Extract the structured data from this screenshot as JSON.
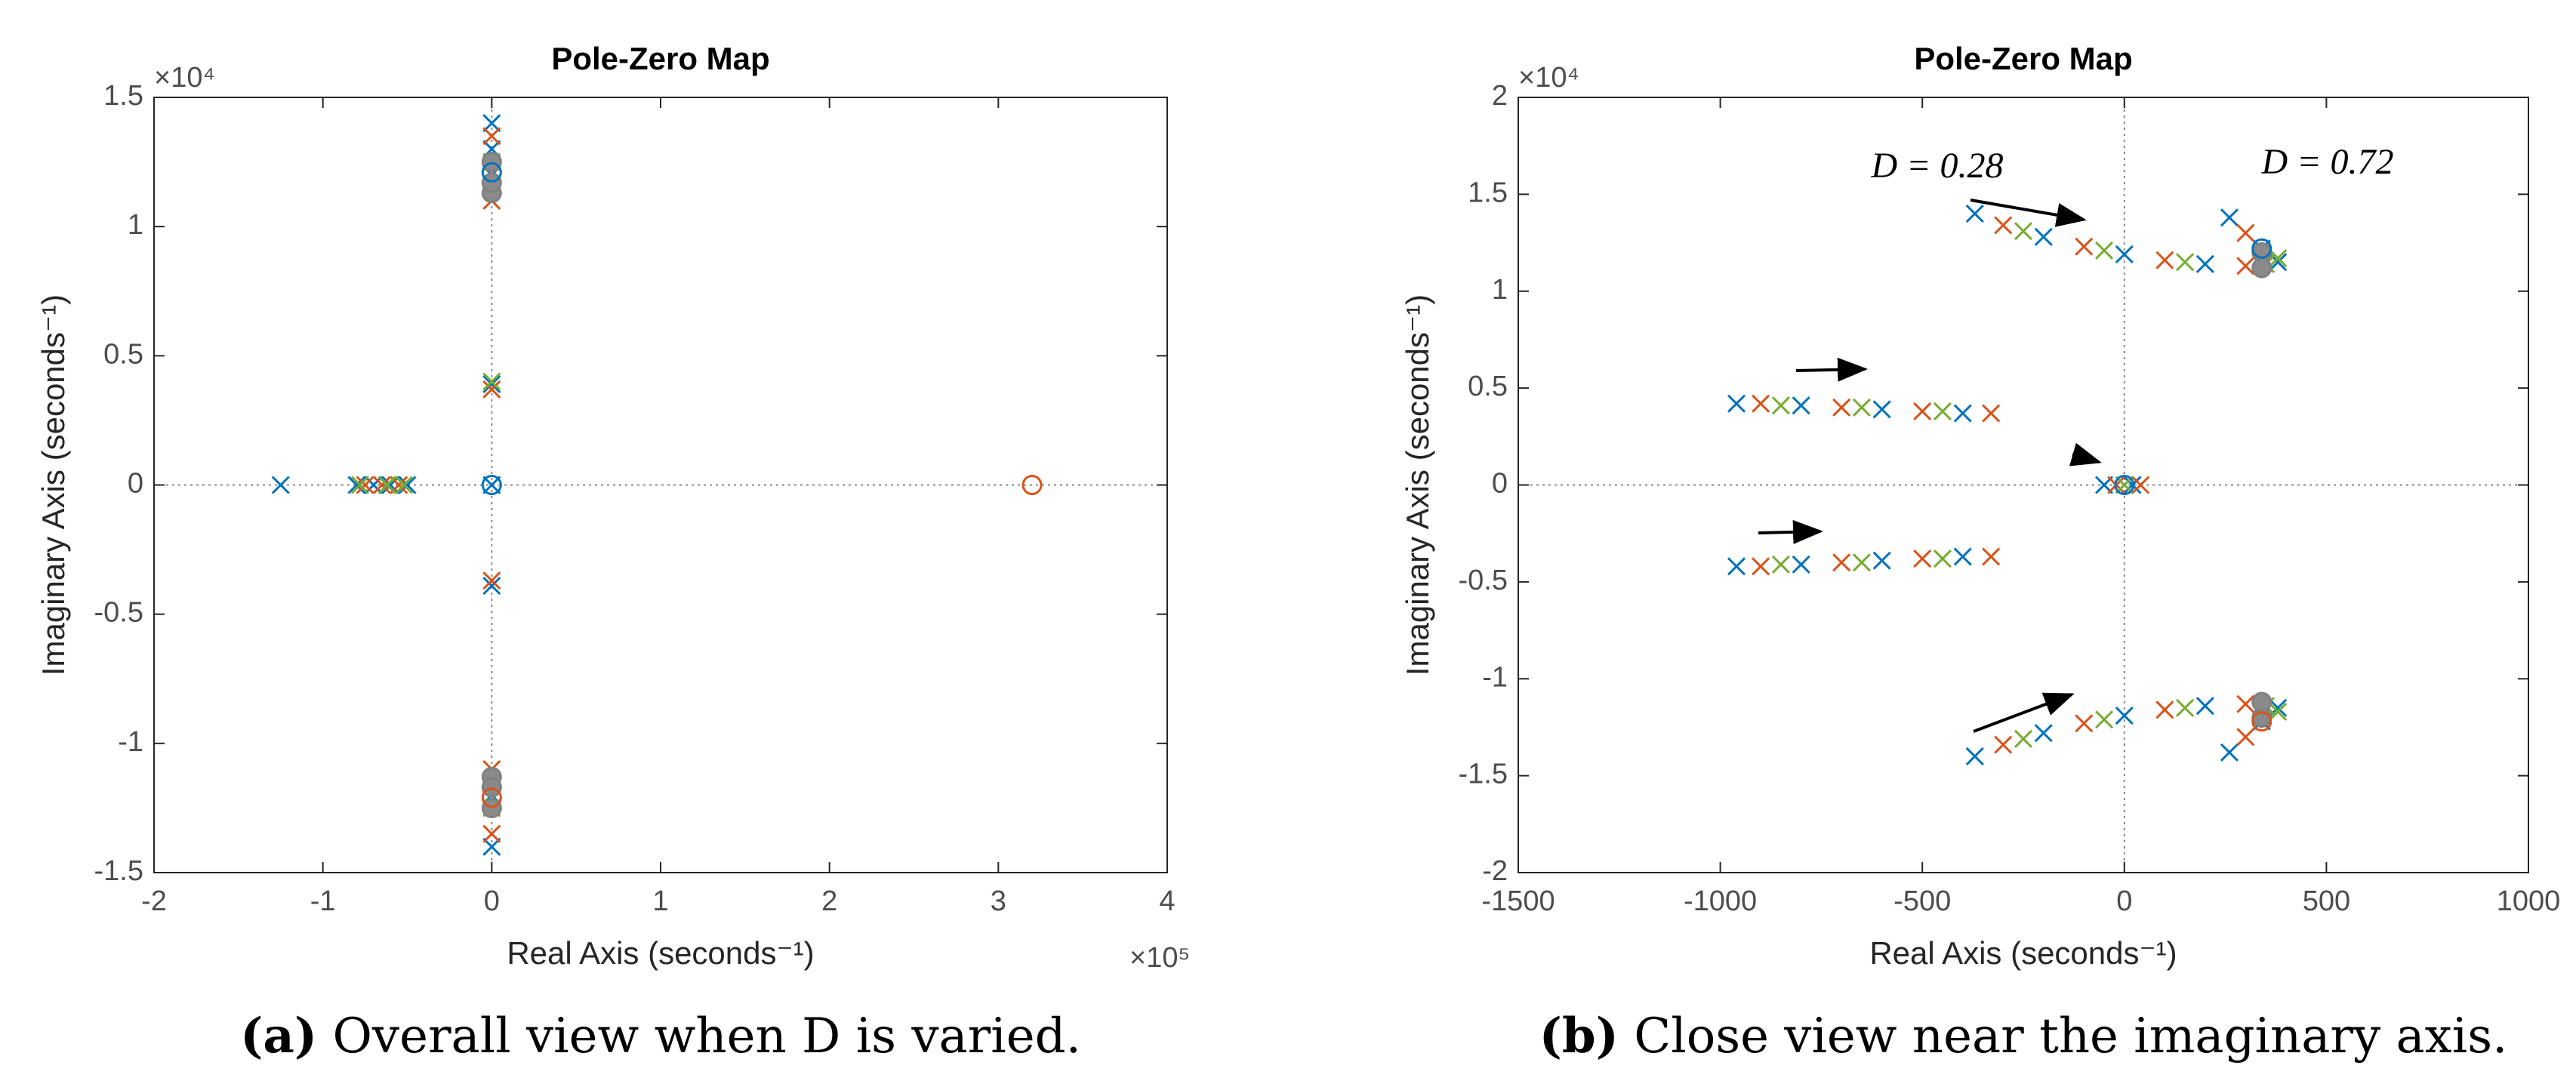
{
  "chart_data": [
    {
      "type": "scatter",
      "title": "Pole-Zero Map",
      "xlabel": "Real Axis (seconds⁻¹)",
      "ylabel": "Imaginary Axis (seconds⁻¹)",
      "x_exponent": "×10⁵",
      "y_exponent": "×10⁴",
      "xlim": [
        -2,
        4
      ],
      "xticks": [
        -2,
        -1,
        0,
        1,
        2,
        3,
        4
      ],
      "ylim": [
        -1.5,
        1.5
      ],
      "yticks": [
        -1.5,
        -1,
        -0.5,
        0,
        0.5,
        1,
        1.5
      ],
      "caption": {
        "label": "(a)",
        "text": "Overall view when D is varied."
      },
      "series": [
        {
          "marker": "x",
          "color": "#0072bd",
          "x": [
            -1.25,
            -0.8,
            -0.7,
            -0.6,
            -0.5,
            0,
            0,
            0,
            0,
            0,
            0,
            0,
            0
          ],
          "y": [
            0,
            0,
            0,
            0,
            0,
            1.4,
            1.2,
            -1.4,
            -1.2,
            0.39,
            -0.39,
            0,
            1.3
          ]
        },
        {
          "marker": "x",
          "color": "#d95319",
          "x": [
            -0.75,
            -0.65,
            -0.55,
            0,
            0,
            0,
            0,
            0,
            0
          ],
          "y": [
            0,
            0,
            0,
            1.35,
            1.1,
            -1.35,
            -1.1,
            0.37,
            -0.37
          ]
        },
        {
          "marker": "x",
          "color": "#77ac30",
          "x": [
            -0.78,
            -0.62,
            -0.52,
            0,
            0,
            0
          ],
          "y": [
            0,
            0,
            0,
            1.25,
            -1.25,
            0.4
          ]
        },
        {
          "marker": "o",
          "color": "#808080",
          "x": [
            0,
            0,
            0,
            0,
            0,
            0
          ],
          "y": [
            1.13,
            1.17,
            1.25,
            -1.13,
            -1.17,
            -1.25
          ]
        },
        {
          "marker": "o",
          "color": "#0072bd",
          "x": [
            0,
            0
          ],
          "y": [
            1.21,
            0
          ]
        },
        {
          "marker": "o",
          "color": "#d95319",
          "x": [
            3.2,
            0
          ],
          "y": [
            0,
            -1.21
          ]
        }
      ]
    },
    {
      "type": "scatter",
      "title": "Pole-Zero Map",
      "xlabel": "Real Axis (seconds⁻¹)",
      "ylabel": "Imaginary Axis (seconds⁻¹)",
      "y_exponent": "×10⁴",
      "xlim": [
        -1500,
        1000
      ],
      "xticks": [
        -1500,
        -1000,
        -500,
        0,
        500,
        1000
      ],
      "ylim": [
        -2,
        2
      ],
      "yticks": [
        -2,
        -1.5,
        -1,
        -0.5,
        0,
        0.5,
        1,
        1.5,
        2
      ],
      "annotations": [
        "D = 0.28",
        "D = 0.72"
      ],
      "caption": {
        "label": "(b)",
        "text": "Close view near the imaginary axis."
      },
      "series": [
        {
          "marker": "x",
          "color": "#0072bd",
          "x": [
            -370,
            -200,
            0,
            200,
            380,
            260,
            340,
            -370,
            -200,
            0,
            200,
            380,
            260,
            340,
            -960,
            -800,
            -600,
            -400,
            -960,
            -800,
            -600,
            -400,
            -50,
            20
          ],
          "y": [
            1.4,
            1.28,
            1.19,
            1.14,
            1.15,
            1.38,
            1.22,
            -1.4,
            -1.28,
            -1.19,
            -1.14,
            -1.15,
            -1.38,
            -1.22,
            0.42,
            0.41,
            0.39,
            0.37,
            -0.42,
            -0.41,
            -0.39,
            -0.37,
            0,
            0
          ]
        },
        {
          "marker": "x",
          "color": "#d95319",
          "x": [
            -300,
            -100,
            100,
            300,
            300,
            -300,
            -100,
            100,
            300,
            300,
            -900,
            -700,
            -500,
            -330,
            -900,
            -700,
            -500,
            -330,
            -20,
            40
          ],
          "y": [
            1.34,
            1.23,
            1.16,
            1.13,
            1.3,
            -1.34,
            -1.23,
            -1.16,
            -1.13,
            -1.3,
            0.42,
            0.4,
            0.38,
            0.37,
            -0.42,
            -0.4,
            -0.38,
            -0.37,
            0,
            0
          ]
        },
        {
          "marker": "x",
          "color": "#77ac30",
          "x": [
            -250,
            -50,
            150,
            350,
            380,
            -250,
            -50,
            150,
            350,
            380,
            -850,
            -650,
            -450,
            -850,
            -650,
            -450,
            0
          ],
          "y": [
            1.31,
            1.21,
            1.15,
            1.14,
            1.17,
            -1.31,
            -1.21,
            -1.15,
            -1.14,
            -1.17,
            0.41,
            0.4,
            0.38,
            -0.41,
            -0.4,
            -0.38,
            0
          ]
        },
        {
          "marker": "o",
          "color": "#808080",
          "x": [
            340,
            340,
            340,
            340
          ],
          "y": [
            1.2,
            1.12,
            -1.2,
            -1.12
          ]
        },
        {
          "marker": "o",
          "color": "#0072bd",
          "x": [
            340,
            0
          ],
          "y": [
            1.22,
            0
          ]
        },
        {
          "marker": "o",
          "color": "#d95319",
          "x": [
            340
          ],
          "y": [
            -1.22
          ]
        }
      ]
    }
  ]
}
